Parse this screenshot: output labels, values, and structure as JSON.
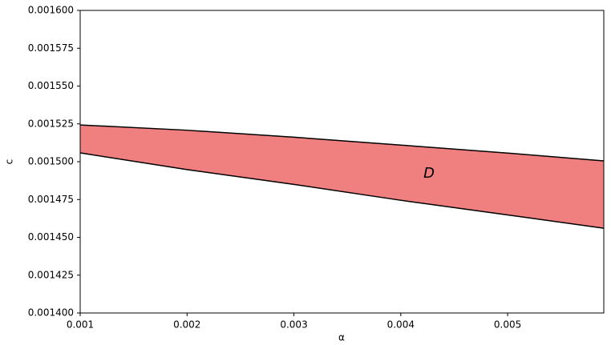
{
  "chart_data": {
    "type": "area_between",
    "x": [
      0.001,
      0.002,
      0.003,
      0.004,
      0.005,
      0.0059
    ],
    "y_upper": [
      0.0015243,
      0.0015208,
      0.0015162,
      0.001511,
      0.0015057,
      0.0015005
    ],
    "y_lower": [
      0.0015058,
      0.0014948,
      0.001485,
      0.0014745,
      0.0014648,
      0.001456
    ],
    "fill_color": "#f08080",
    "line_color": "#000000",
    "xlim": [
      0.001,
      0.0059
    ],
    "xticks": [
      0.001,
      0.002,
      0.003,
      0.004,
      0.005
    ],
    "ylim": [
      0.0014,
      0.0016
    ],
    "yticks": [
      {
        "value": 0.0014,
        "label": "0.001400"
      },
      {
        "value": 0.001425,
        "label": "0.001425"
      },
      {
        "value": 0.00145,
        "label": "0.001450"
      },
      {
        "value": 0.001475,
        "label": "0.001475"
      },
      {
        "value": 0.0015,
        "label": "0.001500"
      },
      {
        "value": 0.001525,
        "label": "0.001525"
      },
      {
        "value": 0.00155,
        "label": "0.001550"
      },
      {
        "value": 0.001575,
        "label": "0.001575"
      },
      {
        "value": 0.0016,
        "label": "0.001600"
      }
    ],
    "xlabel": "α",
    "ylabel": "c",
    "annotation": "D"
  }
}
